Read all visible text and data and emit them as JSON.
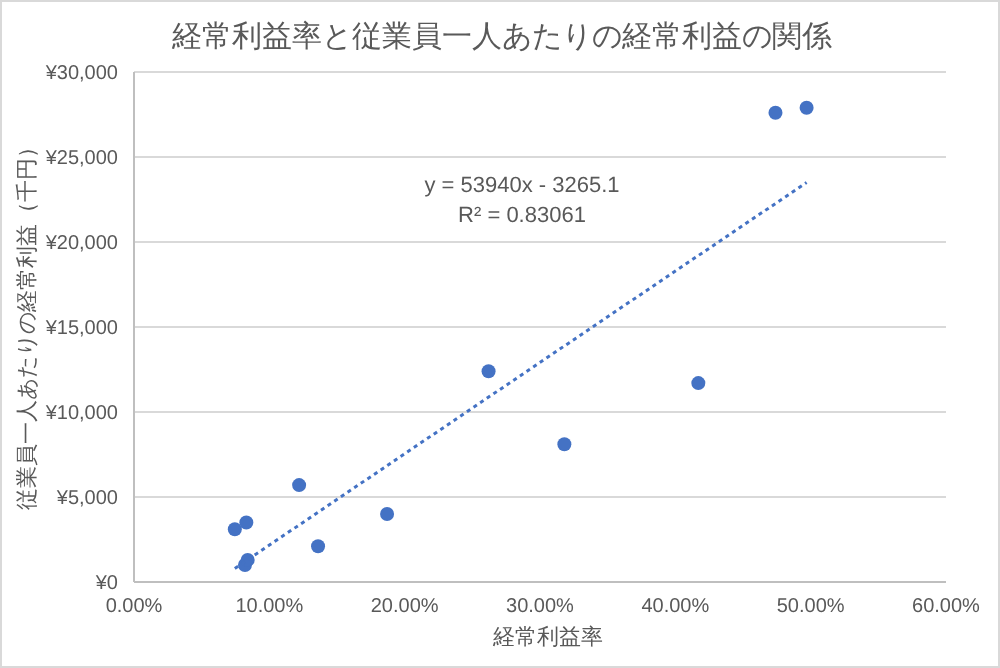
{
  "chart_data": {
    "type": "scatter",
    "title": "経常利益率と従業員一人あたりの経常利益の関係",
    "xlabel": "経常利益率",
    "ylabel": "従業員一人あたりの経常利益（千円）",
    "series": [
      {
        "color": "#4472c4",
        "x": [
          0.0745,
          0.083,
          0.082,
          0.084,
          0.122,
          0.136,
          0.187,
          0.262,
          0.318,
          0.417,
          0.474,
          0.497
        ],
        "values": [
          3100,
          3500,
          1000,
          1300,
          5700,
          2100,
          4000,
          12400,
          8100,
          11700,
          27600,
          27900
        ]
      },
      {
        "type": "line",
        "color": "#4472c4",
        "line_style": "dotted",
        "marker": "none",
        "x": [
          0.0745,
          0.497
        ],
        "values": [
          800,
          23500
        ]
      }
    ],
    "xlim": [
      0,
      0.6
    ],
    "xticks": [
      {
        "value": 0,
        "label": "0.00%"
      },
      {
        "value": 0.1,
        "label": "10.00%"
      },
      {
        "value": 0.2,
        "label": "20.00%"
      },
      {
        "value": 0.3,
        "label": "30.00%"
      },
      {
        "value": 0.4,
        "label": "40.00%"
      },
      {
        "value": 0.5,
        "label": "50.00%"
      },
      {
        "value": 0.6,
        "label": "60.00%"
      }
    ],
    "ylim": [
      0,
      30000
    ],
    "yticks": [
      {
        "value": 0,
        "label": "¥0"
      },
      {
        "value": 5000,
        "label": "¥5,000"
      },
      {
        "value": 10000,
        "label": "¥10,000"
      },
      {
        "value": 15000,
        "label": "¥15,000"
      },
      {
        "value": 20000,
        "label": "¥20,000"
      },
      {
        "value": 25000,
        "label": "¥25,000"
      },
      {
        "value": 30000,
        "label": "¥30,000"
      }
    ],
    "grid": "y",
    "legend": false,
    "marker": "circle",
    "annotations": [
      "y = 53940x - 3265.1",
      "R² = 0.83061"
    ]
  }
}
